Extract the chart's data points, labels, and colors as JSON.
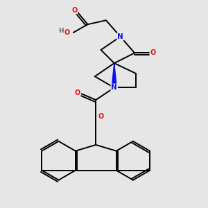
{
  "bg_color": "#e6e6e6",
  "atom_colors": {
    "N": "#1010ee",
    "O": "#ee1010",
    "C": "#000000",
    "H": "#606060"
  },
  "bond_color": "#000000",
  "bond_width": 1.4,
  "figsize": [
    3.0,
    3.0
  ],
  "dpi": 100,
  "xlim": [
    0,
    10
  ],
  "ylim": [
    0,
    10
  ]
}
